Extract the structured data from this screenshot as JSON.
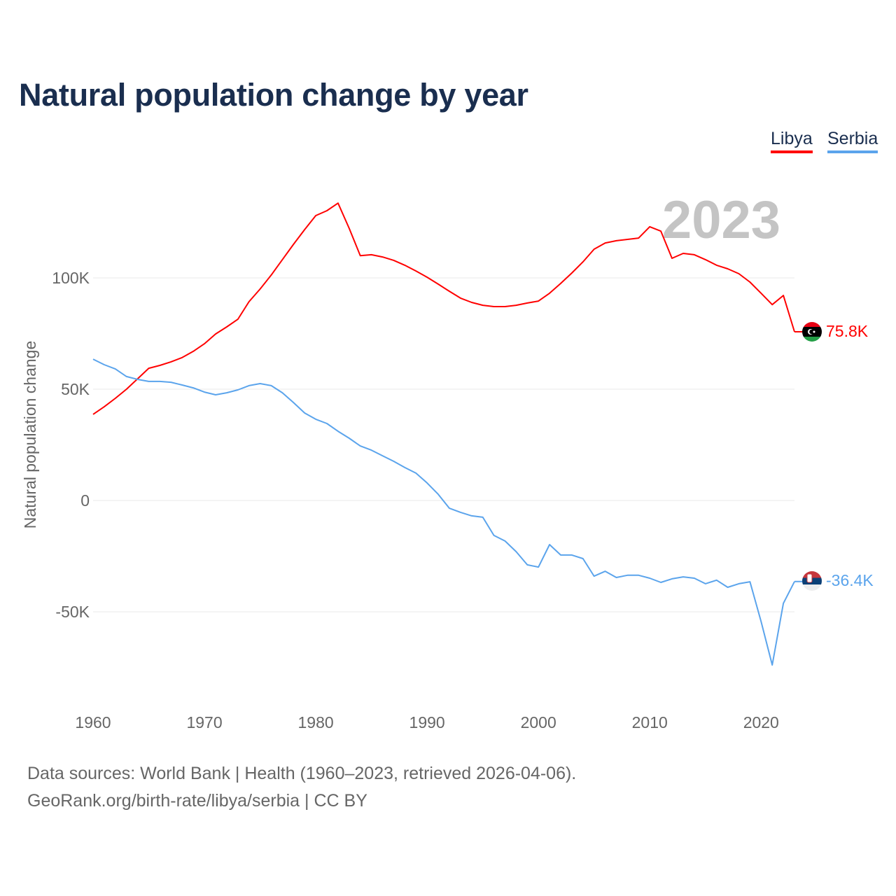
{
  "chart_data": {
    "type": "line",
    "title": "Natural population change by year",
    "xlabel": "",
    "ylabel": "Natural population change",
    "xlim": [
      1960,
      2023
    ],
    "ylim": [
      -85000,
      145000
    ],
    "grid": true,
    "legend_position": "top-right",
    "year_watermark": "2023",
    "x_ticks": [
      1960,
      1970,
      1980,
      1990,
      2000,
      2010,
      2020
    ],
    "x_tick_labels": [
      "1960",
      "1970",
      "1980",
      "1990",
      "2000",
      "2010",
      "2020"
    ],
    "y_ticks": [
      100000,
      50000,
      0,
      -50000
    ],
    "y_tick_labels": [
      "100K",
      "50K",
      "0",
      "-50K"
    ],
    "x": [
      1960,
      1961,
      1962,
      1963,
      1964,
      1965,
      1966,
      1967,
      1968,
      1969,
      1970,
      1971,
      1972,
      1973,
      1974,
      1975,
      1976,
      1977,
      1978,
      1979,
      1980,
      1981,
      1982,
      1983,
      1984,
      1985,
      1986,
      1987,
      1988,
      1989,
      1990,
      1991,
      1992,
      1993,
      1994,
      1995,
      1996,
      1997,
      1998,
      1999,
      2000,
      2001,
      2002,
      2003,
      2004,
      2005,
      2006,
      2007,
      2008,
      2009,
      2010,
      2011,
      2012,
      2013,
      2014,
      2015,
      2016,
      2017,
      2018,
      2019,
      2020,
      2021,
      2022,
      2023
    ],
    "series": [
      {
        "name": "Libya",
        "color": "#ff0000",
        "end_label": "75.8K",
        "values": [
          38700,
          42100,
          45900,
          50000,
          54700,
          59400,
          60700,
          62300,
          64200,
          67000,
          70400,
          74800,
          78000,
          81400,
          89300,
          95000,
          101300,
          108200,
          115100,
          121700,
          128000,
          130200,
          133600,
          122300,
          110000,
          110400,
          109400,
          107900,
          105700,
          103100,
          100300,
          97200,
          94000,
          90900,
          89000,
          87700,
          87100,
          87100,
          87700,
          88700,
          89600,
          93100,
          97500,
          102200,
          107200,
          112900,
          115700,
          116700,
          117300,
          117900,
          123000,
          121000,
          108800,
          111000,
          110400,
          108200,
          105700,
          104100,
          101900,
          98100,
          93100,
          88000,
          92100,
          75800
        ]
      },
      {
        "name": "Serbia",
        "color": "#5ba4ec",
        "end_label": "-36.4K",
        "values": [
          63500,
          61000,
          59100,
          55700,
          54400,
          53500,
          53500,
          53100,
          51900,
          50600,
          48700,
          47500,
          48400,
          49700,
          51600,
          52500,
          51600,
          48400,
          44000,
          39300,
          36500,
          34600,
          31100,
          28000,
          24500,
          22600,
          20100,
          17600,
          14800,
          12300,
          7900,
          2800,
          -3500,
          -5300,
          -6900,
          -7500,
          -15700,
          -18200,
          -23000,
          -28900,
          -29900,
          -19800,
          -24500,
          -24500,
          -26100,
          -34000,
          -31800,
          -34600,
          -33600,
          -33600,
          -34900,
          -36800,
          -35200,
          -34300,
          -34900,
          -37400,
          -35800,
          -39000,
          -37400,
          -36500,
          -54400,
          -73900,
          -46200,
          -36400
        ]
      }
    ]
  },
  "footer": {
    "line1": "Data sources: World Bank | Health (1960–2023, retrieved 2026-04-06).",
    "line2": "GeoRank.org/birth-rate/libya/serbia | CC BY"
  }
}
